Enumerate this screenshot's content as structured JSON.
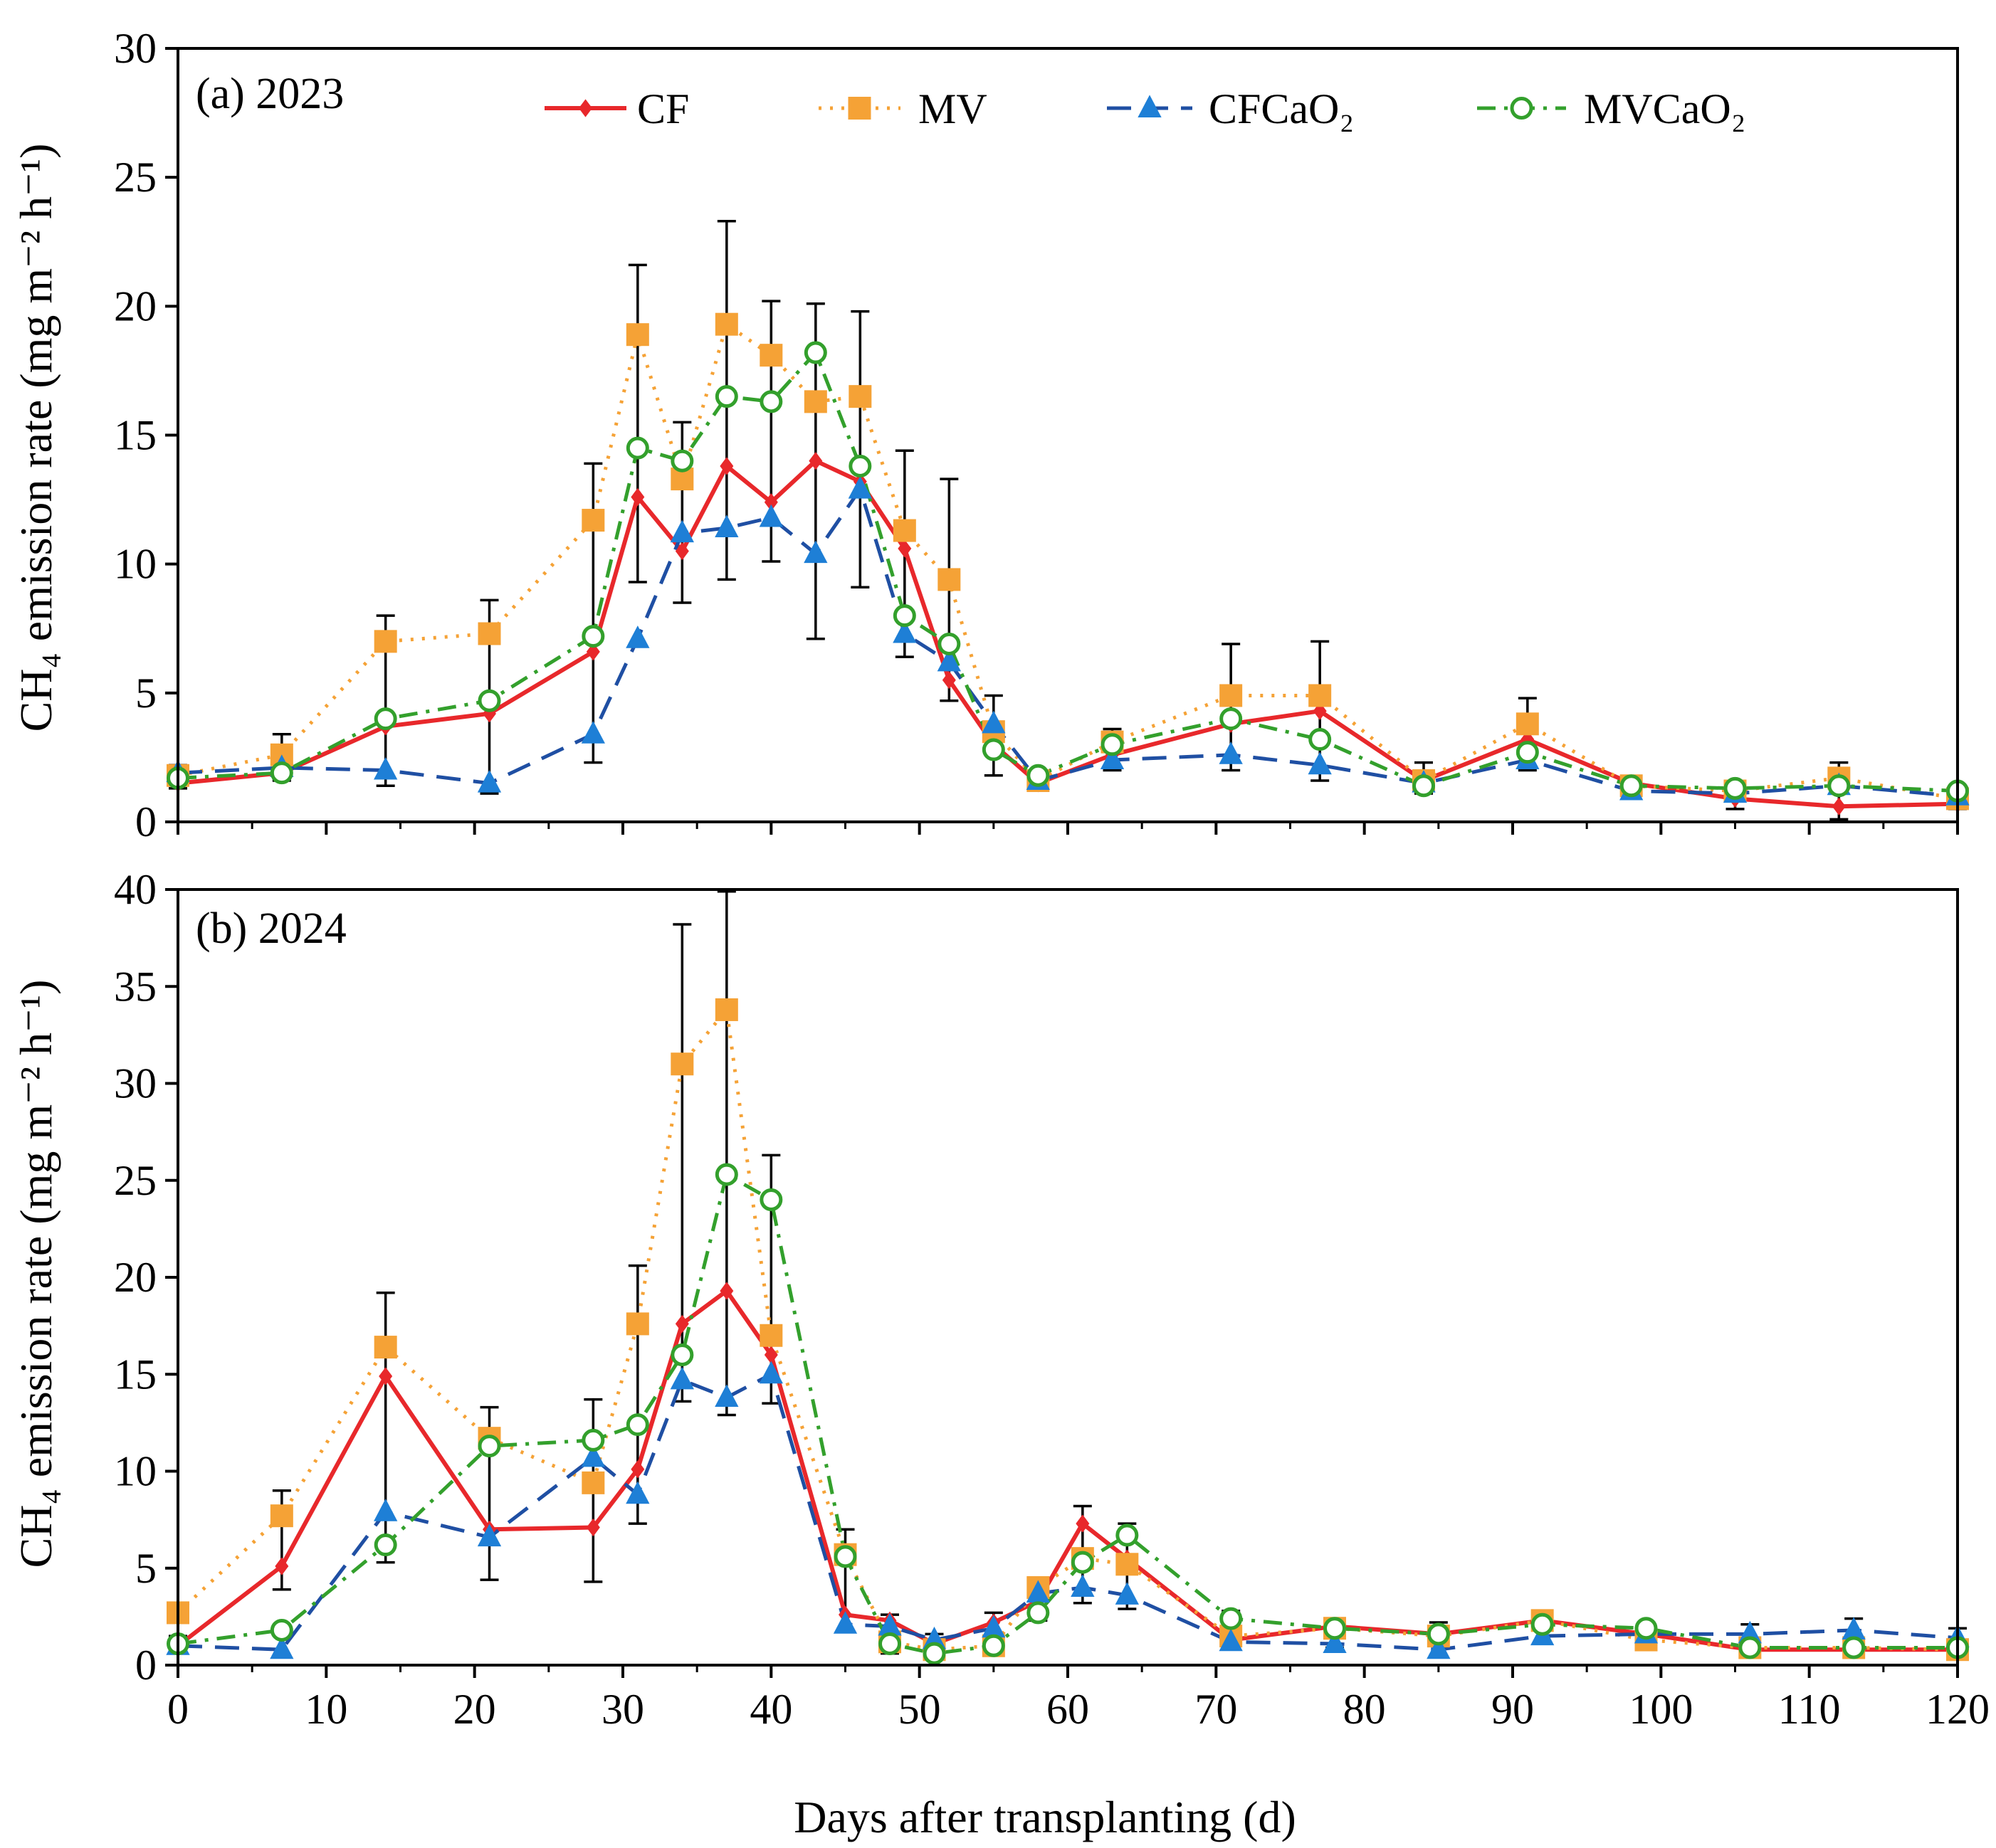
{
  "figure": {
    "xlabel": "Days after transplanting (d)"
  },
  "legend": [
    {
      "label": "CF",
      "series": "CF"
    },
    {
      "label": "MV",
      "series": "MV"
    },
    {
      "label": "CFCaO₂",
      "series": "CFCaO2"
    },
    {
      "label": "MVCaO₂",
      "series": "MVCaO2"
    }
  ],
  "series_style": {
    "CF": {
      "color": "#e8282b",
      "dash": "none",
      "marker": "diamond",
      "filled": true
    },
    "MV": {
      "color": "#f5a236",
      "dash": "4 12",
      "marker": "square",
      "filled": true
    },
    "CFCaO2": {
      "color": "#1f4fa3",
      "dash": "34 18",
      "marker": "triangle",
      "filled": true,
      "marker_color": "#1e7fd6"
    },
    "MVCaO2": {
      "color": "#33a02c",
      "dash": "26 12 5 12",
      "marker": "circle",
      "filled": false
    }
  },
  "chart_data": [
    {
      "type": "line",
      "panel_label": "(a) 2023",
      "ylabel": "CH₄ emission rate (mg m⁻² h⁻¹)",
      "xlabel": "",
      "xlim": [
        0,
        120
      ],
      "ylim": [
        0,
        30
      ],
      "xticks": [
        0,
        10,
        20,
        30,
        40,
        50,
        60,
        70,
        80,
        90,
        100,
        110,
        120
      ],
      "yticks": [
        0,
        5,
        10,
        15,
        20,
        25,
        30
      ],
      "tick_labels_x": [
        "0",
        "10",
        "20",
        "30",
        "40",
        "50",
        "60",
        "70",
        "80",
        "90",
        "100",
        "110",
        "120"
      ],
      "tick_labels_y": [
        "0",
        "5",
        "10",
        "15",
        "20",
        "25",
        "30"
      ],
      "x": [
        0,
        7,
        14,
        21,
        28,
        31,
        34,
        37,
        40,
        43,
        46,
        49,
        52,
        55,
        58,
        63,
        71,
        77,
        84,
        91,
        98,
        105,
        112,
        120
      ],
      "series": [
        {
          "name": "CF",
          "values": [
            1.5,
            1.9,
            3.7,
            4.2,
            6.6,
            12.6,
            10.5,
            13.8,
            12.4,
            14.0,
            13.2,
            10.6,
            5.5,
            3.0,
            1.5,
            2.6,
            3.8,
            4.3,
            1.6,
            3.2,
            1.5,
            0.9,
            0.6,
            0.7
          ]
        },
        {
          "name": "MV",
          "values": [
            1.8,
            2.6,
            7.0,
            7.3,
            11.7,
            18.9,
            13.3,
            19.3,
            18.1,
            16.3,
            16.5,
            11.3,
            9.4,
            3.5,
            1.6,
            3.1,
            4.9,
            4.9,
            1.6,
            3.8,
            1.4,
            1.2,
            1.7,
            0.9
          ]
        },
        {
          "name": "CFCaO2",
          "values": [
            1.9,
            2.1,
            2.0,
            1.5,
            3.4,
            7.1,
            11.2,
            11.4,
            11.8,
            10.4,
            12.9,
            7.3,
            6.2,
            3.8,
            1.6,
            2.4,
            2.6,
            2.2,
            1.5,
            2.4,
            1.2,
            1.1,
            1.4,
            1.0
          ]
        },
        {
          "name": "MVCaO2",
          "values": [
            1.7,
            1.9,
            4.0,
            4.7,
            7.2,
            14.5,
            14.0,
            16.5,
            16.3,
            18.2,
            13.8,
            8.0,
            6.9,
            2.8,
            1.8,
            3.0,
            4.0,
            3.2,
            1.4,
            2.7,
            1.4,
            1.3,
            1.4,
            1.2
          ]
        }
      ],
      "error_bar_upper": [
        2.2,
        3.4,
        8.0,
        8.6,
        13.9,
        21.6,
        15.5,
        23.3,
        20.2,
        20.1,
        19.8,
        14.4,
        13.3,
        4.9,
        2.0,
        3.6,
        6.9,
        7.0,
        2.3,
        4.8,
        1.6,
        1.3,
        2.3,
        1.3
      ],
      "error_bar_lower": [
        1.3,
        1.6,
        1.4,
        1.1,
        2.3,
        9.3,
        8.5,
        9.4,
        10.1,
        7.1,
        9.1,
        6.4,
        4.7,
        1.8,
        1.3,
        2.0,
        2.0,
        1.6,
        1.1,
        2.0,
        1.1,
        0.5,
        0.1,
        0.5
      ]
    },
    {
      "type": "line",
      "panel_label": "(b) 2024",
      "ylabel": "CH₄ emission rate (mg m⁻² h⁻¹)",
      "xlabel": "Days after transplanting (d)",
      "xlim": [
        0,
        120
      ],
      "ylim": [
        0,
        40
      ],
      "xticks": [
        0,
        10,
        20,
        30,
        40,
        50,
        60,
        70,
        80,
        90,
        100,
        110,
        120
      ],
      "yticks": [
        0,
        5,
        10,
        15,
        20,
        25,
        30,
        35,
        40
      ],
      "tick_labels_x": [
        "0",
        "10",
        "20",
        "30",
        "40",
        "50",
        "60",
        "70",
        "80",
        "90",
        "100",
        "110",
        "120"
      ],
      "tick_labels_y": [
        "0",
        "5",
        "10",
        "15",
        "20",
        "25",
        "30",
        "35",
        "40"
      ],
      "x": [
        0,
        7,
        14,
        21,
        28,
        31,
        34,
        37,
        40,
        45,
        48,
        51,
        55,
        58,
        61,
        64,
        71,
        78,
        85,
        92,
        99,
        106,
        113,
        120
      ],
      "series": [
        {
          "name": "CF",
          "values": [
            1.0,
            5.1,
            14.9,
            7.0,
            7.1,
            10.1,
            17.6,
            19.3,
            16.0,
            2.6,
            2.3,
            1.1,
            2.2,
            3.3,
            7.3,
            5.5,
            1.3,
            2.0,
            1.6,
            2.3,
            1.6,
            0.8,
            0.8,
            0.8
          ]
        },
        {
          "name": "MV",
          "values": [
            2.7,
            7.7,
            16.4,
            11.7,
            9.4,
            17.6,
            31.0,
            33.8,
            17.0,
            5.7,
            1.2,
            0.8,
            1.0,
            4.0,
            5.5,
            5.2,
            1.5,
            1.9,
            1.5,
            2.3,
            1.3,
            0.9,
            0.9,
            0.8
          ]
        },
        {
          "name": "CFCaO2",
          "values": [
            1.0,
            0.8,
            7.9,
            6.6,
            10.7,
            8.8,
            14.7,
            13.8,
            15.0,
            2.1,
            2.0,
            1.3,
            1.9,
            3.7,
            4.0,
            3.6,
            1.2,
            1.1,
            0.8,
            1.5,
            1.6,
            1.6,
            1.8,
            1.4
          ]
        },
        {
          "name": "MVCaO2",
          "values": [
            1.1,
            1.8,
            6.2,
            11.3,
            11.6,
            12.4,
            16.0,
            25.3,
            24.0,
            5.6,
            1.1,
            0.6,
            1.0,
            2.7,
            5.3,
            6.7,
            2.4,
            1.9,
            1.6,
            2.1,
            1.9,
            0.9,
            0.9,
            0.9
          ]
        }
      ],
      "error_bar_upper": [
        1.5,
        9.0,
        19.2,
        13.3,
        13.7,
        20.6,
        38.2,
        39.9,
        26.3,
        7.0,
        2.6,
        1.6,
        2.7,
        4.3,
        8.2,
        7.3,
        2.8,
        2.4,
        2.2,
        2.7,
        2.1,
        2.1,
        2.4,
        1.9
      ],
      "error_bar_lower": [
        0.6,
        3.9,
        5.3,
        4.4,
        4.3,
        7.3,
        13.6,
        12.9,
        13.5,
        1.7,
        0.6,
        0.3,
        0.6,
        2.3,
        3.2,
        2.9,
        1.0,
        0.9,
        0.5,
        1.1,
        1.1,
        0.5,
        0.5,
        0.4
      ]
    }
  ]
}
